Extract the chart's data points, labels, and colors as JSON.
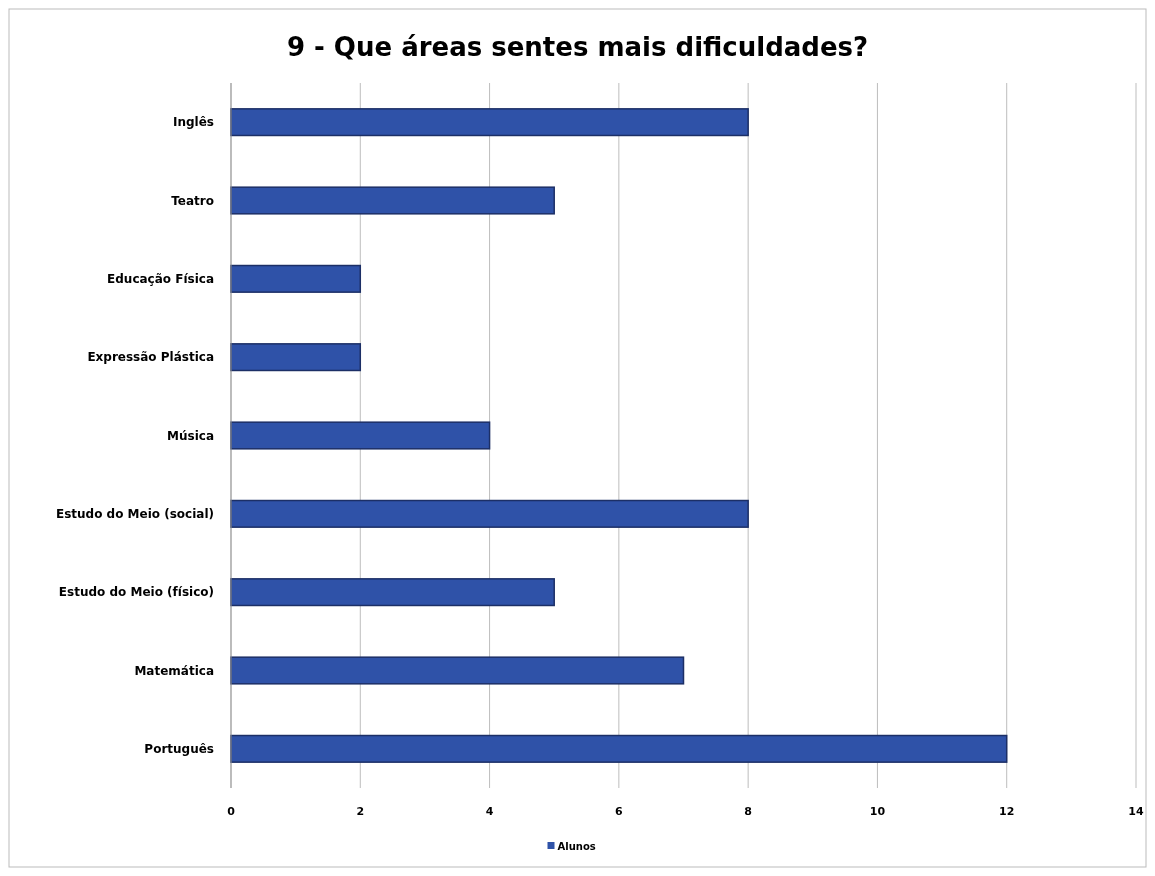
{
  "chart_data": {
    "type": "bar",
    "orientation": "horizontal",
    "title": "9 - Que áreas sentes mais dificuldades?",
    "categories": [
      "Inglês",
      "Teatro",
      "Educação Física",
      "Expressão Plástica",
      "Música",
      "Estudo do Meio (social)",
      "Estudo do Meio (físico)",
      "Matemática",
      "Português"
    ],
    "series": [
      {
        "name": "Alunos",
        "color": "#2f52a8",
        "values": [
          8,
          5,
          2,
          2,
          4,
          8,
          5,
          7,
          12
        ]
      }
    ],
    "xlim": [
      0,
      14
    ],
    "xticks": [
      0,
      2,
      4,
      6,
      8,
      10,
      12,
      14
    ],
    "grid": "x",
    "legend": "bottom"
  }
}
